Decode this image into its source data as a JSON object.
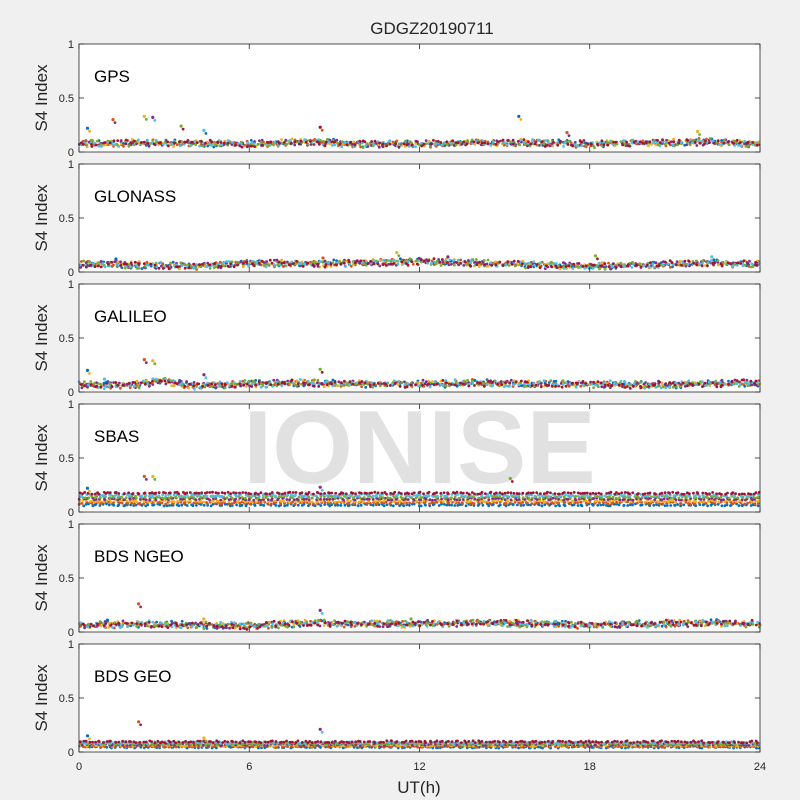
{
  "chart_data": {
    "type": "scatter",
    "title": "GDGZ20190711",
    "xlabel": "UT(h)",
    "ylabel": "S4 Index",
    "xlim": [
      0,
      24
    ],
    "ylim": [
      0,
      1
    ],
    "xticks": [
      "0",
      "6",
      "12",
      "18",
      "24"
    ],
    "yticks": [
      "0",
      "0.5",
      "1"
    ],
    "grid": false,
    "watermark": "IONISE",
    "colors": [
      "#0072BD",
      "#D95319",
      "#EDB120",
      "#7E2F8E",
      "#77AC30",
      "#4DBEEE",
      "#A2142F"
    ],
    "panels": [
      {
        "label": "GPS",
        "baseline": [
          [
            0,
            0.07
          ],
          [
            2,
            0.08
          ],
          [
            4,
            0.08
          ],
          [
            6,
            0.07
          ],
          [
            8,
            0.09
          ],
          [
            10,
            0.07
          ],
          [
            12,
            0.07
          ],
          [
            14,
            0.08
          ],
          [
            16,
            0.08
          ],
          [
            18,
            0.07
          ],
          [
            20,
            0.08
          ],
          [
            22,
            0.09
          ],
          [
            24,
            0.07
          ]
        ],
        "outliers": [
          [
            0.3,
            0.22
          ],
          [
            1.2,
            0.3
          ],
          [
            2.3,
            0.33
          ],
          [
            2.6,
            0.32
          ],
          [
            3.6,
            0.24
          ],
          [
            4.4,
            0.2
          ],
          [
            8.5,
            0.23
          ],
          [
            15.5,
            0.33
          ],
          [
            17.2,
            0.18
          ],
          [
            21.8,
            0.19
          ]
        ]
      },
      {
        "label": "GLONASS",
        "baseline": [
          [
            0,
            0.07
          ],
          [
            2,
            0.06
          ],
          [
            4,
            0.05
          ],
          [
            6,
            0.08
          ],
          [
            8,
            0.07
          ],
          [
            10,
            0.08
          ],
          [
            12,
            0.09
          ],
          [
            14,
            0.08
          ],
          [
            16,
            0.06
          ],
          [
            18,
            0.05
          ],
          [
            20,
            0.06
          ],
          [
            22,
            0.08
          ],
          [
            24,
            0.07
          ]
        ],
        "outliers": [
          [
            1.3,
            0.12
          ],
          [
            8.6,
            0.13
          ],
          [
            11.2,
            0.18
          ],
          [
            13.0,
            0.14
          ],
          [
            18.2,
            0.15
          ],
          [
            22.3,
            0.14
          ]
        ]
      },
      {
        "label": "GALILEO",
        "baseline": [
          [
            0,
            0.06
          ],
          [
            2,
            0.06
          ],
          [
            3,
            0.1
          ],
          [
            4,
            0.05
          ],
          [
            6,
            0.07
          ],
          [
            8,
            0.08
          ],
          [
            10,
            0.07
          ],
          [
            12,
            0.07
          ],
          [
            14,
            0.08
          ],
          [
            16,
            0.07
          ],
          [
            18,
            0.07
          ],
          [
            20,
            0.06
          ],
          [
            22,
            0.07
          ],
          [
            24,
            0.08
          ]
        ],
        "outliers": [
          [
            0.3,
            0.2
          ],
          [
            2.3,
            0.3
          ],
          [
            2.6,
            0.29
          ],
          [
            4.4,
            0.16
          ],
          [
            8.5,
            0.21
          ],
          [
            0.9,
            0.12
          ]
        ]
      },
      {
        "label": "SBAS",
        "baseline": [
          [
            0,
            0.12
          ],
          [
            24,
            0.12
          ]
        ],
        "outliers": [
          [
            0.3,
            0.22
          ],
          [
            2.3,
            0.33
          ],
          [
            2.6,
            0.33
          ],
          [
            8.5,
            0.23
          ],
          [
            15.2,
            0.31
          ]
        ]
      },
      {
        "label": "BDS NGEO",
        "baseline": [
          [
            0,
            0.06
          ],
          [
            2,
            0.07
          ],
          [
            4,
            0.06
          ],
          [
            6,
            0.05
          ],
          [
            8,
            0.08
          ],
          [
            10,
            0.07
          ],
          [
            12,
            0.07
          ],
          [
            14,
            0.08
          ],
          [
            16,
            0.07
          ],
          [
            18,
            0.06
          ],
          [
            20,
            0.07
          ],
          [
            22,
            0.08
          ],
          [
            24,
            0.07
          ]
        ],
        "outliers": [
          [
            1.0,
            0.11
          ],
          [
            2.1,
            0.26
          ],
          [
            4.4,
            0.12
          ],
          [
            8.5,
            0.2
          ],
          [
            11.7,
            0.12
          ],
          [
            16.8,
            0.1
          ]
        ]
      },
      {
        "label": "BDS GEO",
        "baseline": [
          [
            0,
            0.07
          ],
          [
            24,
            0.07
          ]
        ],
        "outliers": [
          [
            0.3,
            0.15
          ],
          [
            2.1,
            0.28
          ],
          [
            4.4,
            0.13
          ],
          [
            8.5,
            0.21
          ]
        ]
      }
    ]
  }
}
